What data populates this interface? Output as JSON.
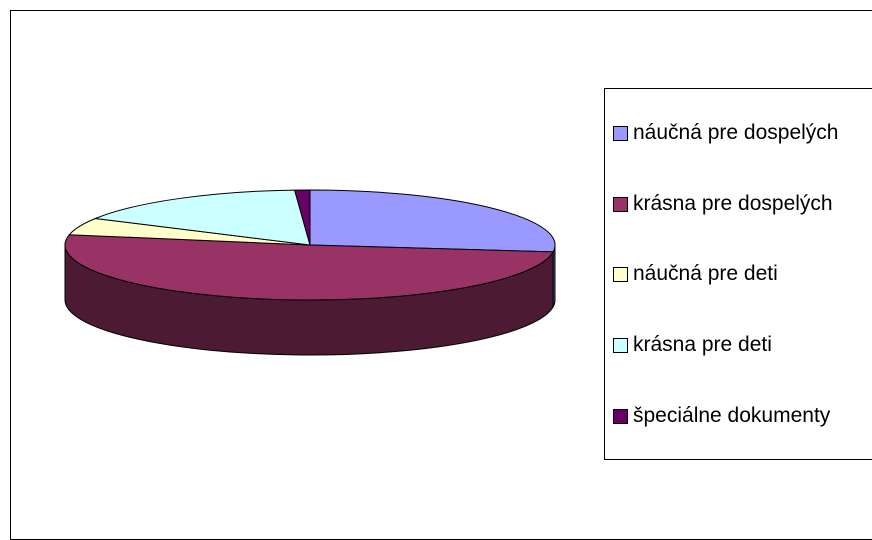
{
  "chart_data": {
    "type": "pie3d",
    "categories": [
      "náučná pre dospelých",
      "krásna pre dospelých",
      "náučná pre deti",
      "krásna pre deti",
      "špeciálne dokumenty"
    ],
    "values": [
      27,
      51,
      5,
      16,
      1
    ],
    "colors": [
      "#9999ff",
      "#993366",
      "#ffffcc",
      "#ccffff",
      "#660066"
    ],
    "legend": "right"
  }
}
